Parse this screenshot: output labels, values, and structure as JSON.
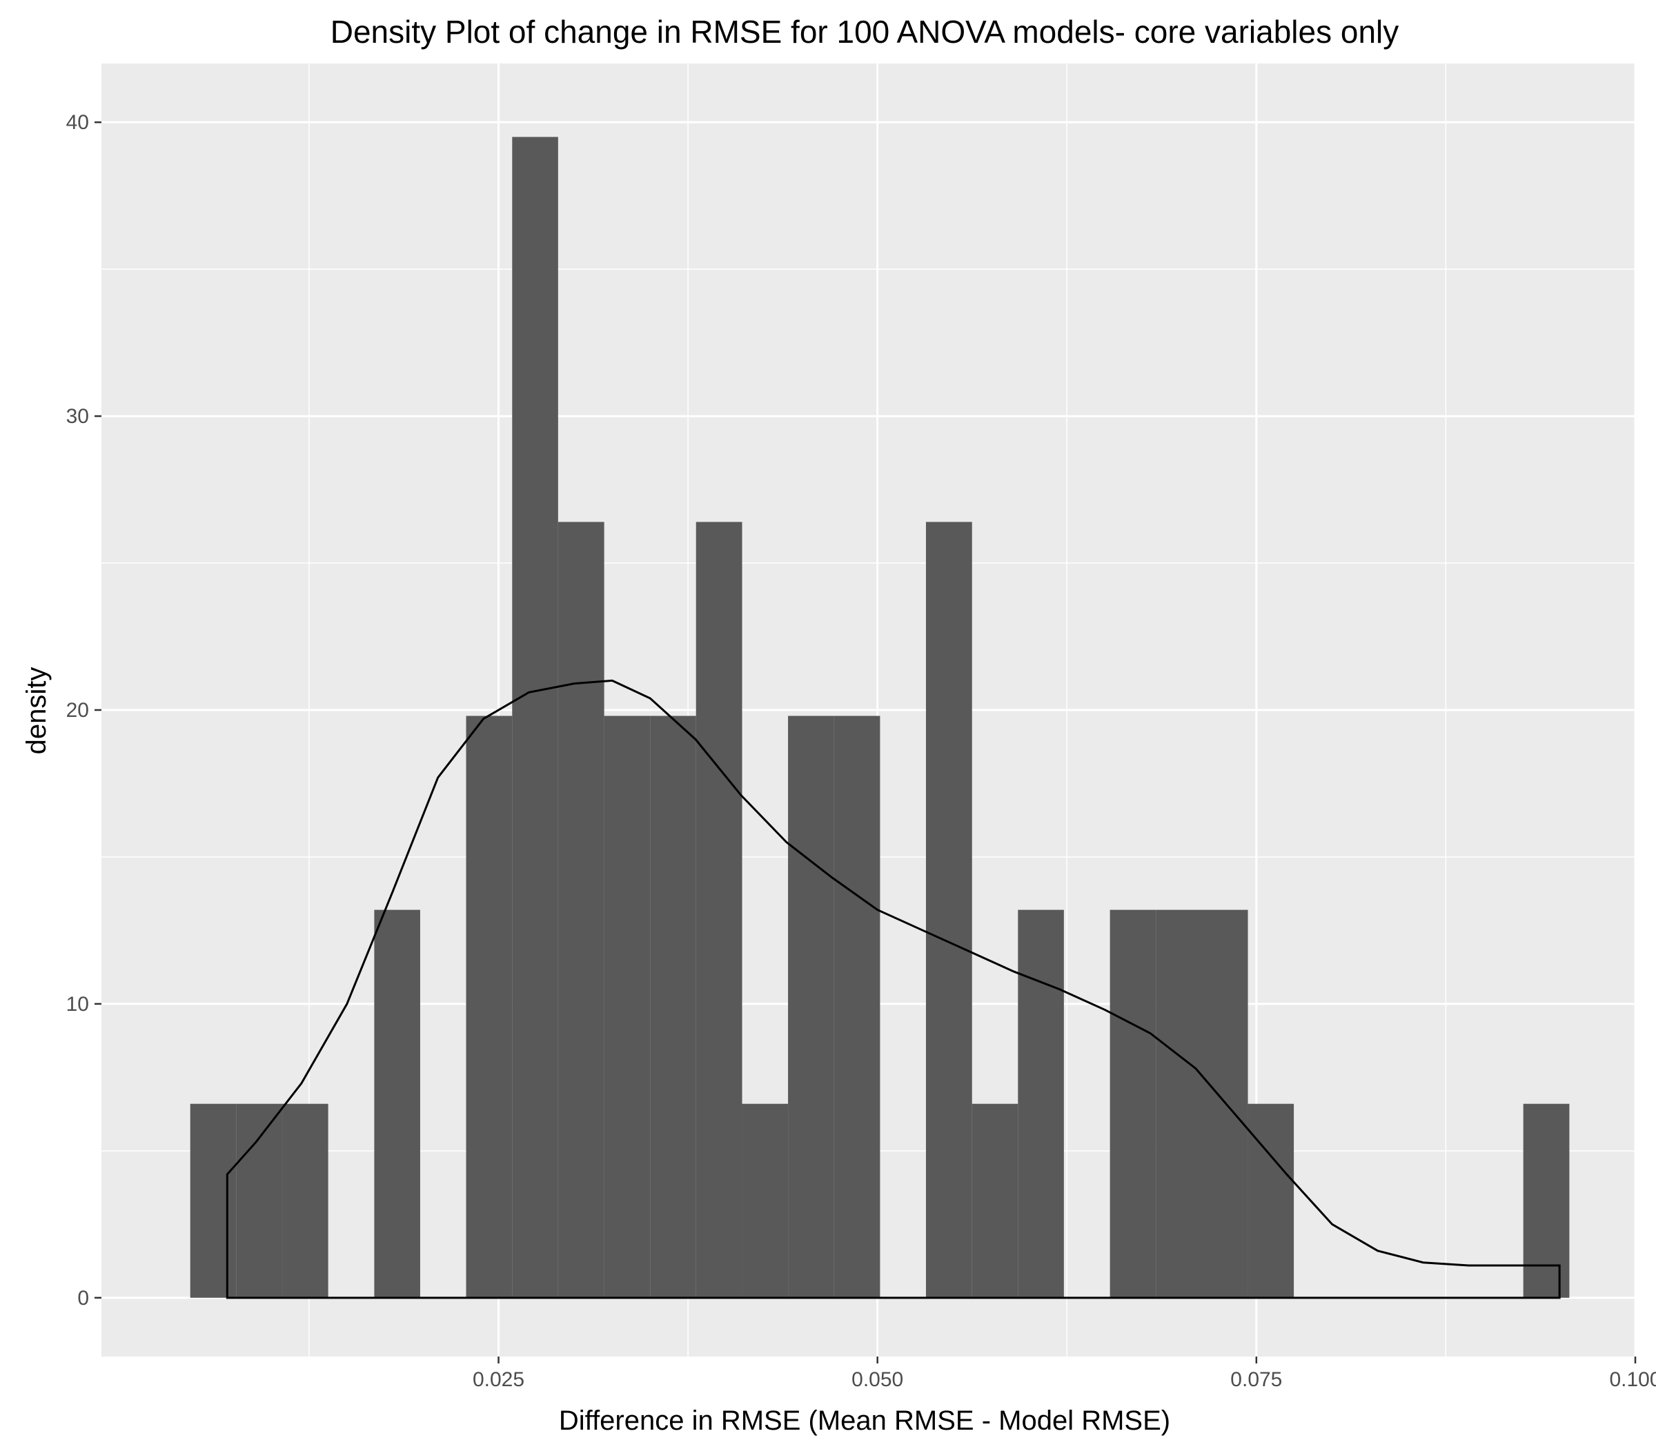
{
  "chart_data": {
    "type": "histogram",
    "title": "Density Plot of change in RMSE for 100 ANOVA models- core variables only",
    "xlabel": "Difference in RMSE (Mean RMSE - Model RMSE)",
    "ylabel": "density",
    "xlim": [
      -0.0012,
      0.1
    ],
    "ylim": [
      -2,
      42
    ],
    "x_ticks": [
      0.025,
      0.05,
      0.075,
      0.1
    ],
    "x_tick_labels": [
      "0.025",
      "0.050",
      "0.075",
      "0.100"
    ],
    "y_ticks": [
      0,
      10,
      20,
      30,
      40
    ],
    "y_tick_labels": [
      "0",
      "10",
      "20",
      "30",
      "40"
    ],
    "grid": true,
    "bin_width": 0.003034,
    "bins": [
      {
        "x0": 0.00466,
        "x1": 0.00769,
        "density": 6.6
      },
      {
        "x0": 0.00769,
        "x1": 0.01073,
        "density": 6.6
      },
      {
        "x0": 0.01073,
        "x1": 0.01376,
        "density": 6.6
      },
      {
        "x0": 0.0168,
        "x1": 0.01983,
        "density": 13.2
      },
      {
        "x0": 0.02286,
        "x1": 0.0259,
        "density": 19.8
      },
      {
        "x0": 0.0259,
        "x1": 0.02893,
        "density": 39.5
      },
      {
        "x0": 0.02893,
        "x1": 0.03197,
        "density": 26.4
      },
      {
        "x0": 0.03197,
        "x1": 0.035,
        "density": 19.8
      },
      {
        "x0": 0.035,
        "x1": 0.03803,
        "density": 19.8
      },
      {
        "x0": 0.03803,
        "x1": 0.04107,
        "density": 26.4
      },
      {
        "x0": 0.04107,
        "x1": 0.0441,
        "density": 6.6
      },
      {
        "x0": 0.0441,
        "x1": 0.04714,
        "density": 19.8
      },
      {
        "x0": 0.04714,
        "x1": 0.05017,
        "density": 19.8
      },
      {
        "x0": 0.0532,
        "x1": 0.05624,
        "density": 26.4
      },
      {
        "x0": 0.05624,
        "x1": 0.05927,
        "density": 6.6
      },
      {
        "x0": 0.05927,
        "x1": 0.0623,
        "density": 13.2
      },
      {
        "x0": 0.06534,
        "x1": 0.06837,
        "density": 13.2
      },
      {
        "x0": 0.06837,
        "x1": 0.07141,
        "density": 13.2
      },
      {
        "x0": 0.07141,
        "x1": 0.07444,
        "density": 13.2
      },
      {
        "x0": 0.07444,
        "x1": 0.07747,
        "density": 6.6
      },
      {
        "x0": 0.09261,
        "x1": 0.09565,
        "density": 6.6
      }
    ],
    "density_curve": {
      "x": [
        0.0071,
        0.009,
        0.012,
        0.015,
        0.018,
        0.021,
        0.024,
        0.027,
        0.03,
        0.0325,
        0.035,
        0.038,
        0.041,
        0.044,
        0.047,
        0.05,
        0.053,
        0.056,
        0.059,
        0.062,
        0.065,
        0.068,
        0.071,
        0.074,
        0.077,
        0.08,
        0.083,
        0.086,
        0.089,
        0.092,
        0.095
      ],
      "y": [
        4.2,
        5.3,
        7.3,
        10.0,
        13.8,
        17.7,
        19.7,
        20.6,
        20.9,
        21.0,
        20.4,
        19.0,
        17.1,
        15.5,
        14.3,
        13.2,
        12.5,
        11.8,
        11.1,
        10.5,
        9.8,
        9.0,
        7.8,
        6.0,
        4.2,
        2.5,
        1.6,
        1.2,
        1.1,
        1.1,
        1.1
      ]
    }
  }
}
